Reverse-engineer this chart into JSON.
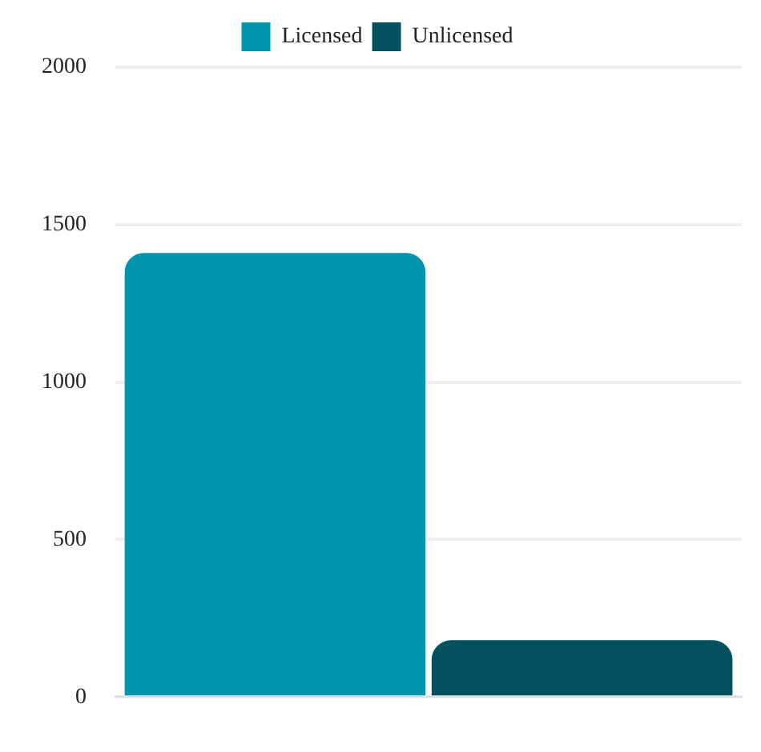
{
  "chart_data": {
    "type": "bar",
    "categories": [
      null
    ],
    "series": [
      {
        "name": "Licensed",
        "color": "#0094ae",
        "values": [
          1410
        ]
      },
      {
        "name": "Unlicensed",
        "color": "#03505f",
        "values": [
          180
        ]
      }
    ],
    "ylim": [
      0,
      2000
    ],
    "yticks": [
      0,
      500,
      1000,
      1500,
      2000
    ],
    "grid": "y",
    "legend": "top"
  }
}
